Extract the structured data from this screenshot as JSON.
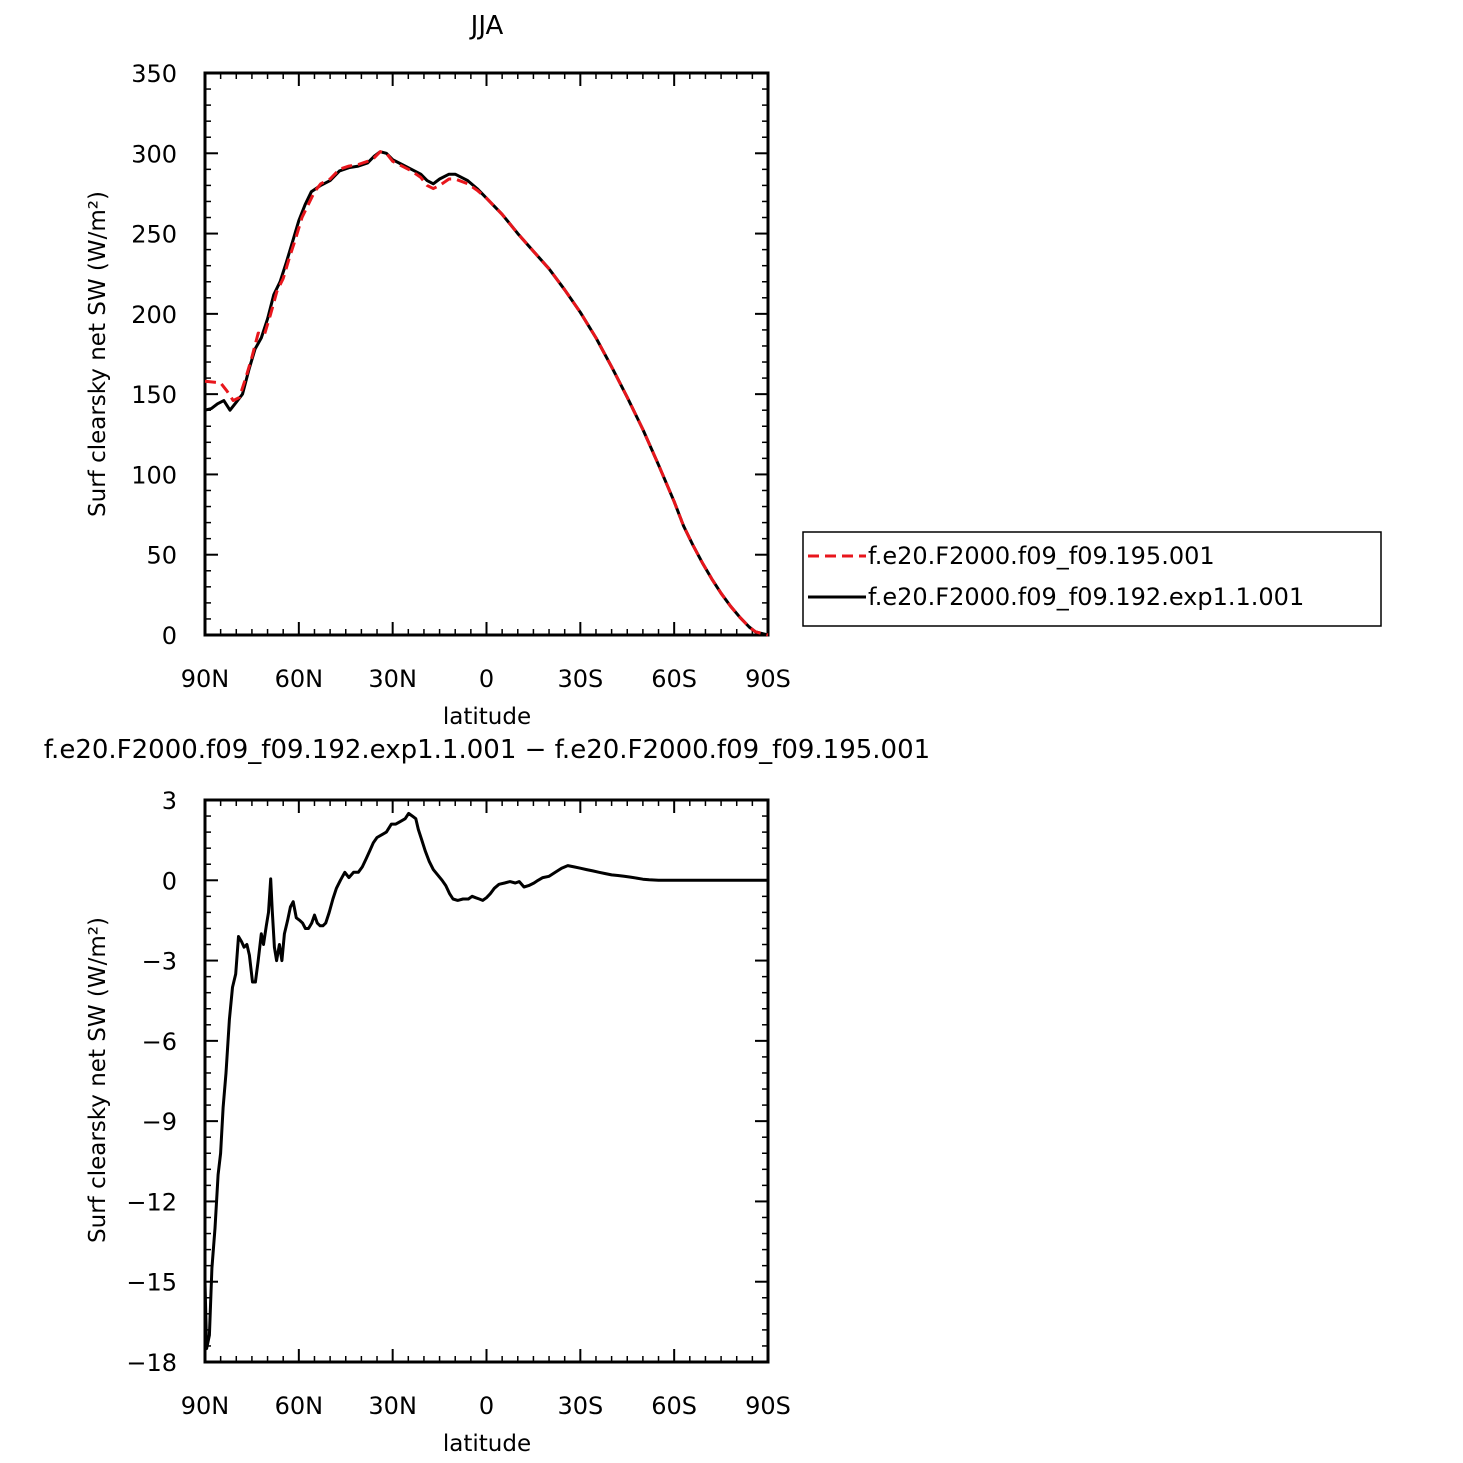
{
  "chart_data": [
    {
      "type": "line",
      "title": "JJA",
      "xlabel": "latitude",
      "ylabel": "Surf clearsky net SW (W/m²)",
      "xlim": [
        90,
        -90
      ],
      "ylim": [
        0,
        350
      ],
      "x_ticks": [
        {
          "value": 90,
          "label": "90N"
        },
        {
          "value": 60,
          "label": "60N"
        },
        {
          "value": 30,
          "label": "30N"
        },
        {
          "value": 0,
          "label": "0"
        },
        {
          "value": -30,
          "label": "30S"
        },
        {
          "value": -60,
          "label": "60S"
        },
        {
          "value": -90,
          "label": "90S"
        }
      ],
      "y_ticks": [
        {
          "value": 0,
          "label": "0"
        },
        {
          "value": 50,
          "label": "50"
        },
        {
          "value": 100,
          "label": "100"
        },
        {
          "value": 150,
          "label": "150"
        },
        {
          "value": 200,
          "label": "200"
        },
        {
          "value": 250,
          "label": "250"
        },
        {
          "value": 300,
          "label": "300"
        },
        {
          "value": 350,
          "label": "350"
        }
      ],
      "legend": "outside-right",
      "series": [
        {
          "name": "f.e20.F2000.f09_f09.195.001",
          "color": "#e8161c",
          "style": "dashed",
          "points": [
            [
              90,
              158
            ],
            [
              85,
              157
            ],
            [
              83,
              152
            ],
            [
              81,
              146
            ],
            [
              79,
              148
            ],
            [
              77,
              160
            ],
            [
              75,
              173
            ],
            [
              73,
              188
            ],
            [
              71,
              187
            ],
            [
              69,
              200
            ],
            [
              67,
              214
            ],
            [
              65,
              222
            ],
            [
              63,
              235
            ],
            [
              61,
              247
            ],
            [
              59,
              260
            ],
            [
              57,
              268
            ],
            [
              55,
              276
            ],
            [
              53,
              281
            ],
            [
              50,
              284
            ],
            [
              47,
              290
            ],
            [
              44,
              292
            ],
            [
              41,
              293
            ],
            [
              38,
              295
            ],
            [
              36,
              297
            ],
            [
              34,
              301
            ],
            [
              32,
              300
            ],
            [
              30,
              295
            ],
            [
              27,
              292
            ],
            [
              24,
              289
            ],
            [
              21,
              285
            ],
            [
              19,
              280
            ],
            [
              17,
              278
            ],
            [
              15,
              280
            ],
            [
              12,
              284
            ],
            [
              10,
              284
            ],
            [
              6,
              281
            ],
            [
              3,
              277
            ],
            [
              0,
              272
            ],
            [
              -5,
              262
            ],
            [
              -10,
              250
            ],
            [
              -15,
              239
            ],
            [
              -20,
              228
            ],
            [
              -25,
              215
            ],
            [
              -30,
              201
            ],
            [
              -35,
              185
            ],
            [
              -40,
              167
            ],
            [
              -45,
              148
            ],
            [
              -50,
              128
            ],
            [
              -55,
              106
            ],
            [
              -60,
              83
            ],
            [
              -63,
              68
            ],
            [
              -66,
              56
            ],
            [
              -69,
              45
            ],
            [
              -72,
              35
            ],
            [
              -75,
              26
            ],
            [
              -78,
              18
            ],
            [
              -81,
              11
            ],
            [
              -84,
              5
            ],
            [
              -86,
              2
            ],
            [
              -88,
              1
            ],
            [
              -90,
              0
            ]
          ]
        },
        {
          "name": "f.e20.F2000.f09_f09.192.exp1.1.001",
          "color": "#000000",
          "style": "solid",
          "points": [
            [
              90,
              140
            ],
            [
              88,
              141
            ],
            [
              86,
              144
            ],
            [
              84,
              146
            ],
            [
              82,
              140
            ],
            [
              80,
              145
            ],
            [
              78,
              150
            ],
            [
              76,
              165
            ],
            [
              74,
              178
            ],
            [
              72,
              185
            ],
            [
              70,
              197
            ],
            [
              68,
              212
            ],
            [
              66,
              220
            ],
            [
              64,
              232
            ],
            [
              62,
              245
            ],
            [
              60,
              258
            ],
            [
              58,
              268
            ],
            [
              56,
              276
            ],
            [
              53,
              280
            ],
            [
              50,
              283
            ],
            [
              47,
              289
            ],
            [
              44,
              291
            ],
            [
              41,
              292
            ],
            [
              38,
              294
            ],
            [
              36,
              298
            ],
            [
              34,
              301
            ],
            [
              32,
              300
            ],
            [
              30,
              296
            ],
            [
              27,
              293
            ],
            [
              24,
              290
            ],
            [
              21,
              287
            ],
            [
              19,
              283
            ],
            [
              17,
              281
            ],
            [
              15,
              284
            ],
            [
              12,
              287
            ],
            [
              10,
              287
            ],
            [
              6,
              283
            ],
            [
              3,
              278
            ],
            [
              0,
              272
            ],
            [
              -5,
              262
            ],
            [
              -10,
              250
            ],
            [
              -15,
              239
            ],
            [
              -20,
              228
            ],
            [
              -25,
              215
            ],
            [
              -30,
              201
            ],
            [
              -35,
              185
            ],
            [
              -40,
              167
            ],
            [
              -45,
              148
            ],
            [
              -50,
              128
            ],
            [
              -55,
              106
            ],
            [
              -60,
              83
            ],
            [
              -63,
              68
            ],
            [
              -66,
              56
            ],
            [
              -69,
              45
            ],
            [
              -72,
              35
            ],
            [
              -75,
              26
            ],
            [
              -78,
              18
            ],
            [
              -81,
              11
            ],
            [
              -84,
              5
            ],
            [
              -86,
              2
            ],
            [
              -88,
              1
            ],
            [
              -90,
              0
            ]
          ]
        }
      ]
    },
    {
      "type": "line",
      "title": "f.e20.F2000.f09_f09.192.exp1.1.001 − f.e20.F2000.f09_f09.195.001",
      "xlabel": "latitude",
      "ylabel": "Surf clearsky net SW (W/m²)",
      "xlim": [
        90,
        -90
      ],
      "ylim": [
        -18,
        3
      ],
      "x_ticks": [
        {
          "value": 90,
          "label": "90N"
        },
        {
          "value": 60,
          "label": "60N"
        },
        {
          "value": 30,
          "label": "30N"
        },
        {
          "value": 0,
          "label": "0"
        },
        {
          "value": -30,
          "label": "30S"
        },
        {
          "value": -60,
          "label": "60S"
        },
        {
          "value": -90,
          "label": "90S"
        }
      ],
      "y_ticks": [
        {
          "value": -18,
          "label": "−18"
        },
        {
          "value": -15,
          "label": "−15"
        },
        {
          "value": -12,
          "label": "−12"
        },
        {
          "value": -9,
          "label": "−9"
        },
        {
          "value": -6,
          "label": "−6"
        },
        {
          "value": -3,
          "label": "−3"
        },
        {
          "value": 0,
          "label": "0"
        },
        {
          "value": 3,
          "label": "3"
        }
      ],
      "series": [
        {
          "color": "#000000",
          "style": "solid",
          "points": [
            [
              90,
              -15.0
            ],
            [
              89.5,
              -17.5
            ],
            [
              88.6,
              -17.0
            ],
            [
              87.8,
              -14.5
            ],
            [
              86.8,
              -13.0
            ],
            [
              85.8,
              -11.0
            ],
            [
              85.0,
              -10.2
            ],
            [
              84.2,
              -8.5
            ],
            [
              83.3,
              -7.2
            ],
            [
              82.2,
              -5.2
            ],
            [
              81.2,
              -4.0
            ],
            [
              80.2,
              -3.5
            ],
            [
              79.3,
              -2.1
            ],
            [
              78.3,
              -2.3
            ],
            [
              77.5,
              -2.5
            ],
            [
              76.6,
              -2.4
            ],
            [
              75.8,
              -2.8
            ],
            [
              74.8,
              -3.8
            ],
            [
              73.9,
              -3.8
            ],
            [
              73.0,
              -3.0
            ],
            [
              72.0,
              -2.0
            ],
            [
              71.3,
              -2.4
            ],
            [
              70.4,
              -1.7
            ],
            [
              69.7,
              -1.2
            ],
            [
              69.0,
              0.05
            ],
            [
              68.5,
              -1.1
            ],
            [
              67.8,
              -2.5
            ],
            [
              67.1,
              -3.0
            ],
            [
              66.2,
              -2.4
            ],
            [
              65.4,
              -3.0
            ],
            [
              64.6,
              -2.0
            ],
            [
              63.6,
              -1.5
            ],
            [
              62.7,
              -1.0
            ],
            [
              61.8,
              -0.8
            ],
            [
              60.8,
              -1.4
            ],
            [
              59.7,
              -1.5
            ],
            [
              58.8,
              -1.6
            ],
            [
              57.9,
              -1.8
            ],
            [
              56.9,
              -1.8
            ],
            [
              55.9,
              -1.6
            ],
            [
              55.0,
              -1.3
            ],
            [
              54.1,
              -1.6
            ],
            [
              53.2,
              -1.7
            ],
            [
              52.3,
              -1.7
            ],
            [
              51.4,
              -1.6
            ],
            [
              50.3,
              -1.2
            ],
            [
              49.1,
              -0.7
            ],
            [
              48.0,
              -0.3
            ],
            [
              46.7,
              0.0
            ],
            [
              45.3,
              0.3
            ],
            [
              44.0,
              0.1
            ],
            [
              42.5,
              0.3
            ],
            [
              41.0,
              0.3
            ],
            [
              39.7,
              0.5
            ],
            [
              38.5,
              0.8
            ],
            [
              37.3,
              1.1
            ],
            [
              36.2,
              1.4
            ],
            [
              35.0,
              1.6
            ],
            [
              33.5,
              1.7
            ],
            [
              32.0,
              1.8
            ],
            [
              30.4,
              2.1
            ],
            [
              29.0,
              2.1
            ],
            [
              27.5,
              2.2
            ],
            [
              26.0,
              2.3
            ],
            [
              24.9,
              2.5
            ],
            [
              23.7,
              2.4
            ],
            [
              22.6,
              2.3
            ],
            [
              21.8,
              1.9
            ],
            [
              20.7,
              1.5
            ],
            [
              19.6,
              1.1
            ],
            [
              18.3,
              0.7
            ],
            [
              17.0,
              0.4
            ],
            [
              15.6,
              0.2
            ],
            [
              14.2,
              0.0
            ],
            [
              13.0,
              -0.2
            ],
            [
              11.8,
              -0.5
            ],
            [
              10.7,
              -0.7
            ],
            [
              9.2,
              -0.75
            ],
            [
              7.5,
              -0.7
            ],
            [
              5.8,
              -0.7
            ],
            [
              4.6,
              -0.6
            ],
            [
              3.5,
              -0.65
            ],
            [
              2.3,
              -0.7
            ],
            [
              1.2,
              -0.75
            ],
            [
              0.0,
              -0.65
            ],
            [
              -1.2,
              -0.5
            ],
            [
              -2.5,
              -0.3
            ],
            [
              -4.0,
              -0.15
            ],
            [
              -5.8,
              -0.1
            ],
            [
              -7.5,
              -0.05
            ],
            [
              -9.2,
              -0.1
            ],
            [
              -10.5,
              -0.05
            ],
            [
              -12.0,
              -0.25
            ],
            [
              -13.5,
              -0.2
            ],
            [
              -15.2,
              -0.1
            ],
            [
              -16.5,
              0.0
            ],
            [
              -18.0,
              0.1
            ],
            [
              -20.0,
              0.15
            ],
            [
              -22.0,
              0.3
            ],
            [
              -24.0,
              0.45
            ],
            [
              -26.0,
              0.55
            ],
            [
              -28.0,
              0.5
            ],
            [
              -30.0,
              0.45
            ],
            [
              -32.0,
              0.4
            ],
            [
              -34.0,
              0.35
            ],
            [
              -36.0,
              0.3
            ],
            [
              -38.0,
              0.25
            ],
            [
              -40.0,
              0.2
            ],
            [
              -42.0,
              0.18
            ],
            [
              -44.0,
              0.15
            ],
            [
              -46.0,
              0.12
            ],
            [
              -48.0,
              0.08
            ],
            [
              -50.0,
              0.04
            ],
            [
              -52.0,
              0.02
            ],
            [
              -55.0,
              0.0
            ],
            [
              -60.0,
              0.0
            ],
            [
              -70.0,
              0.0
            ],
            [
              -80.0,
              0.0
            ],
            [
              -90.0,
              0.0
            ]
          ]
        }
      ]
    }
  ]
}
